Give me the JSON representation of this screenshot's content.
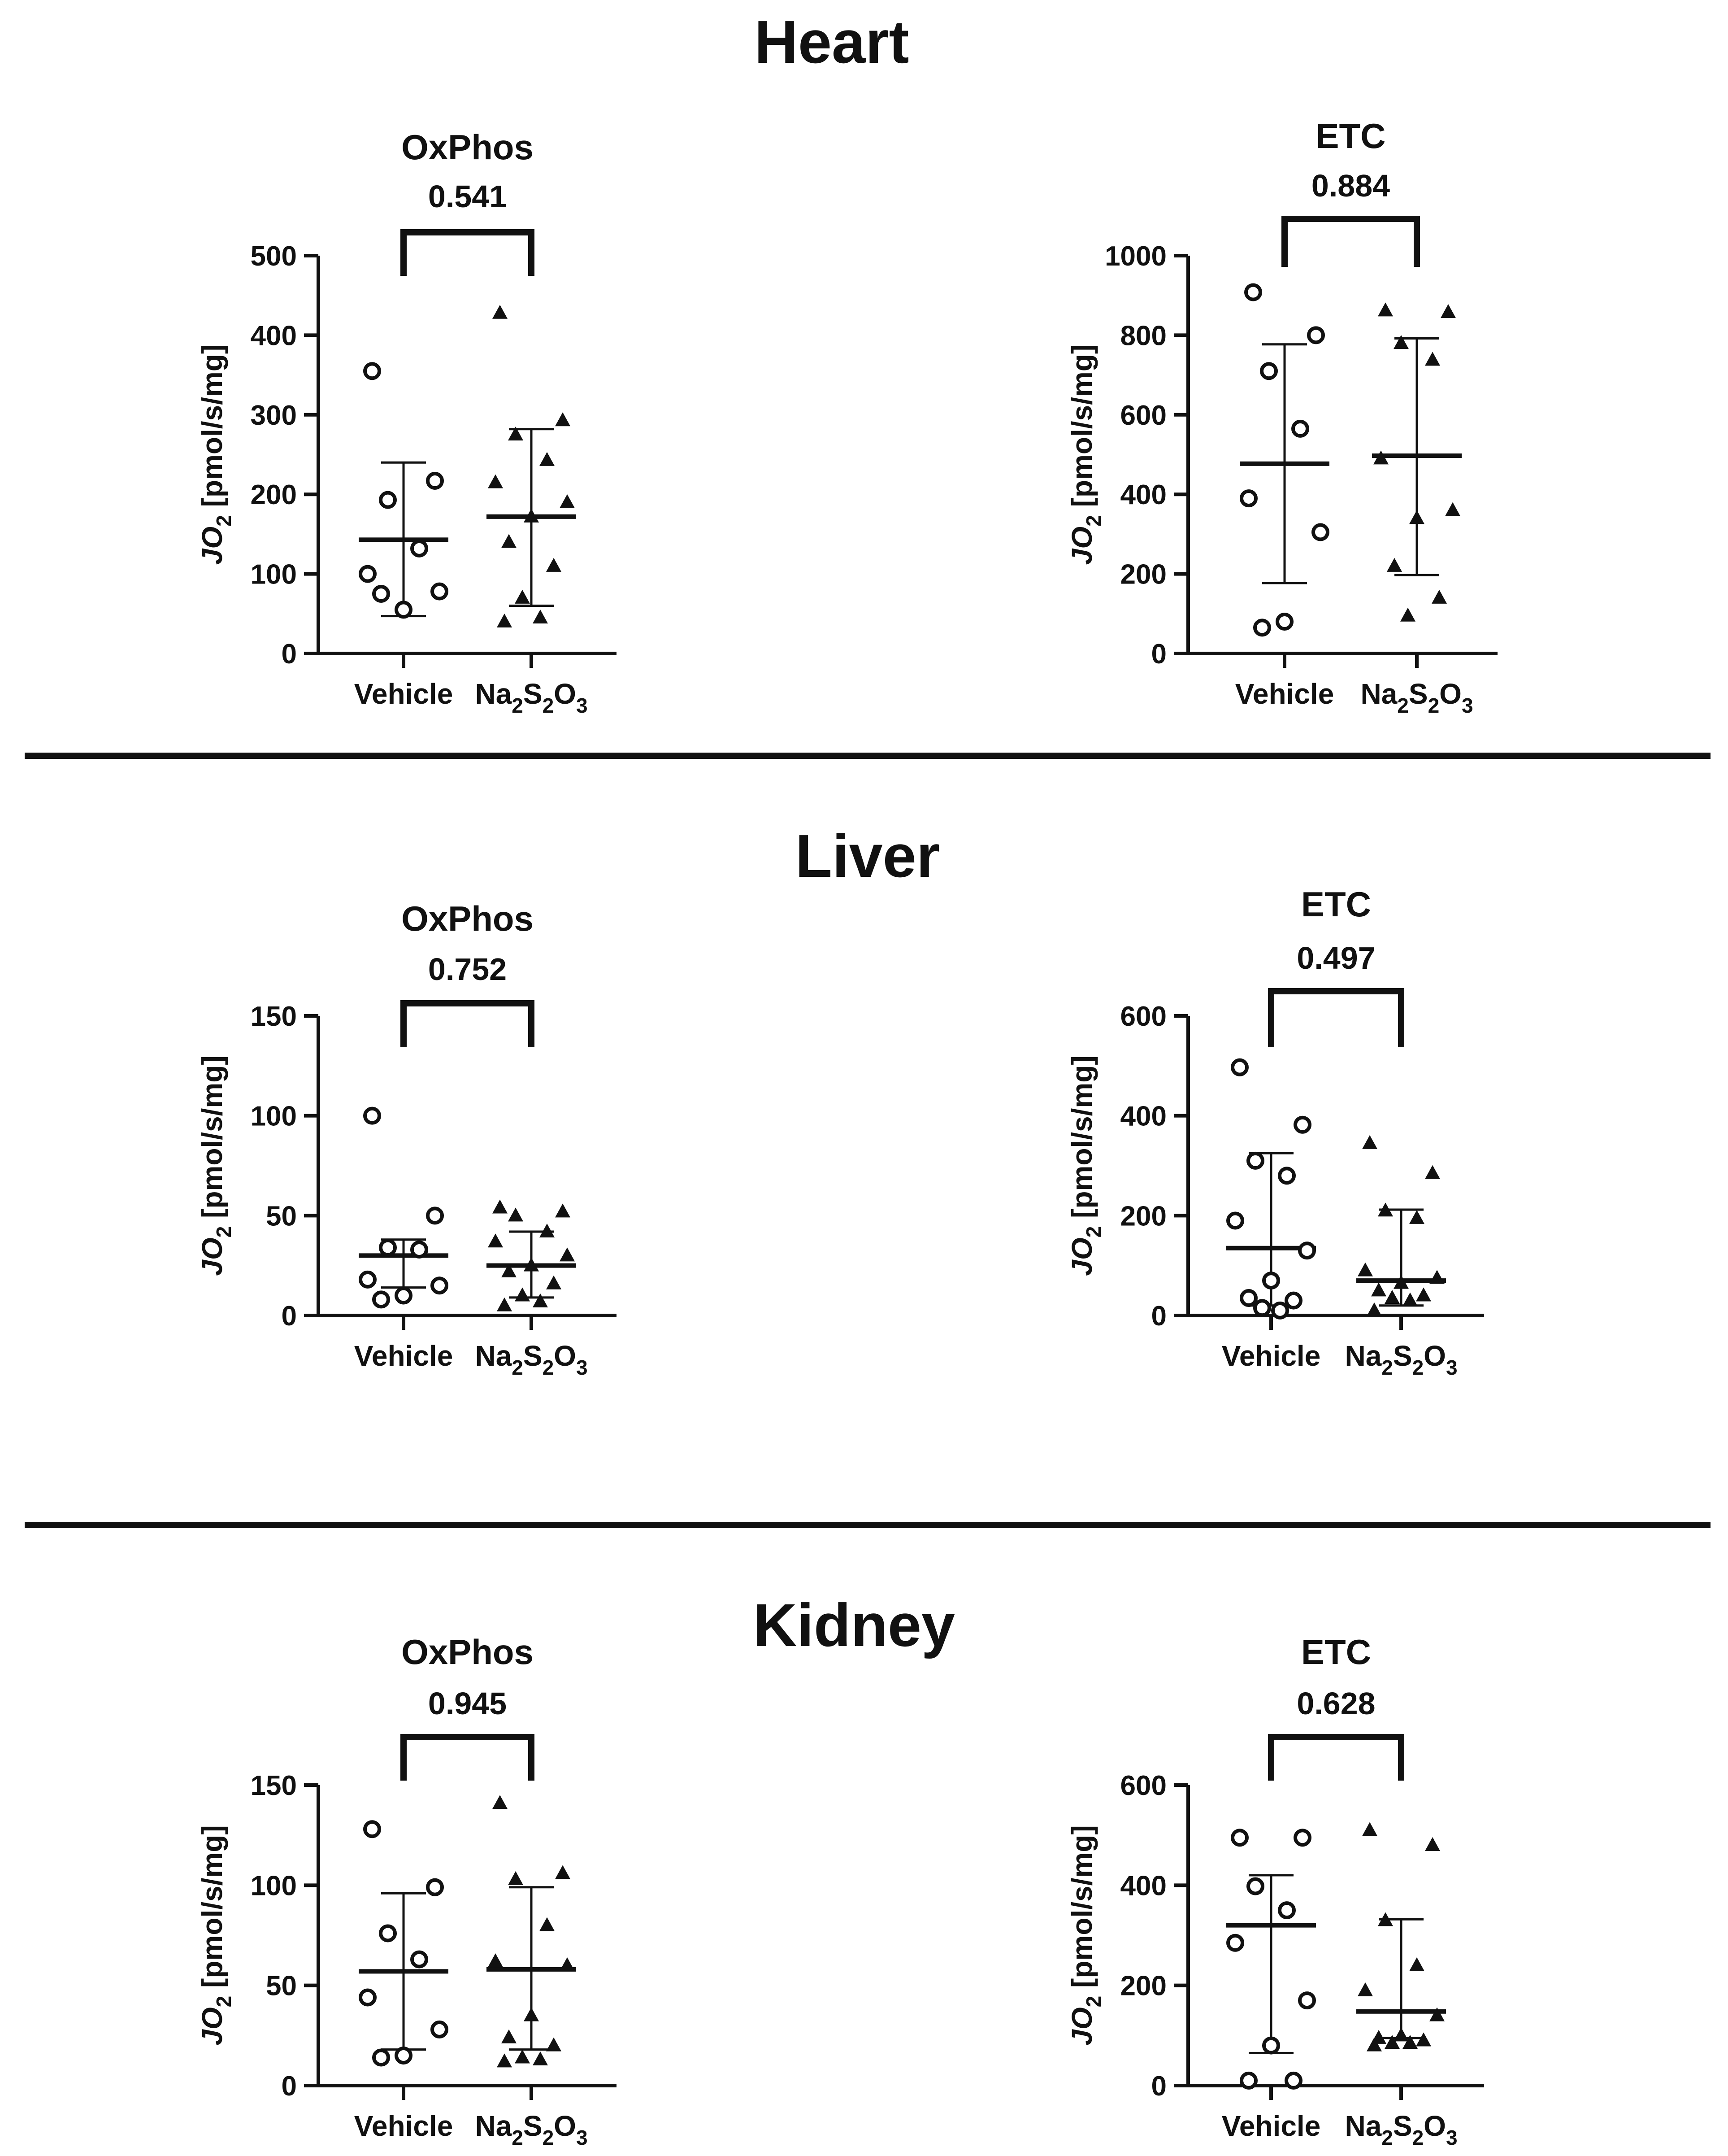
{
  "sections": [
    {
      "title": "Heart"
    },
    {
      "title": "Liver"
    },
    {
      "title": "Kidney"
    }
  ],
  "y_axis_label": {
    "italic_part": "JO",
    "subscript": "2",
    "rest": " [pmol/s/mg]"
  },
  "categories": [
    {
      "label": "Vehicle"
    },
    {
      "label_parts": [
        "Na",
        "2",
        "S",
        "2",
        "O",
        "3"
      ],
      "label": "Na2S2O3"
    }
  ],
  "chart_data": [
    {
      "section": "Heart",
      "type": "scatter",
      "title": "OxPhos",
      "p_value": "0.541",
      "ylabel": "JO2 [pmol/s/mg]",
      "ylim": [
        0,
        500
      ],
      "yticks": [
        0,
        100,
        200,
        300,
        400,
        500
      ],
      "categories": [
        "Vehicle",
        "Na2S2O3"
      ],
      "series": [
        {
          "name": "Vehicle",
          "marker": "open-circle",
          "mean": 143,
          "sd_low": 47,
          "sd_high": 240,
          "values": [
            355,
            217,
            193,
            132,
            100,
            78,
            55,
            75
          ]
        },
        {
          "name": "Na2S2O3",
          "marker": "filled-triangle",
          "mean": 172,
          "sd_low": 60,
          "sd_high": 282,
          "values": [
            428,
            293,
            275,
            243,
            215,
            190,
            172,
            140,
            110,
            70,
            45,
            40
          ]
        }
      ]
    },
    {
      "section": "Heart",
      "type": "scatter",
      "title": "ETC",
      "p_value": "0.884",
      "ylabel": "JO2 [pmol/s/mg]",
      "ylim": [
        0,
        1000
      ],
      "yticks": [
        0,
        200,
        400,
        600,
        800,
        1000
      ],
      "categories": [
        "Vehicle",
        "Na2S2O3"
      ],
      "series": [
        {
          "name": "Vehicle",
          "marker": "open-circle",
          "mean": 477,
          "sd_low": 177,
          "sd_high": 777,
          "values": [
            908,
            800,
            710,
            565,
            390,
            305,
            80,
            65
          ]
        },
        {
          "name": "Na2S2O3",
          "marker": "filled-triangle",
          "mean": 497,
          "sd_low": 197,
          "sd_high": 792,
          "values": [
            862,
            858,
            780,
            738,
            490,
            360,
            340,
            220,
            140,
            95
          ]
        }
      ]
    },
    {
      "section": "Liver",
      "type": "scatter",
      "title": "OxPhos",
      "p_value": "0.752",
      "ylabel": "JO2 [pmol/s/mg]",
      "ylim": [
        0,
        150
      ],
      "yticks": [
        0,
        50,
        100,
        150
      ],
      "categories": [
        "Vehicle",
        "Na2S2O3"
      ],
      "series": [
        {
          "name": "Vehicle",
          "marker": "open-circle",
          "mean": 30,
          "sd_low": 14,
          "sd_high": 38,
          "values": [
            100,
            50,
            34,
            33,
            18,
            15,
            10,
            8
          ]
        },
        {
          "name": "Na2S2O3",
          "marker": "filled-triangle",
          "mean": 25,
          "sd_low": 9,
          "sd_high": 42,
          "values": [
            54,
            52,
            50,
            42,
            37,
            30,
            25,
            22,
            16,
            10,
            7,
            5
          ]
        }
      ]
    },
    {
      "section": "Liver",
      "type": "scatter",
      "title": "ETC",
      "p_value": "0.497",
      "ylabel": "JO2 [pmol/s/mg]",
      "ylim": [
        0,
        600
      ],
      "yticks": [
        0,
        200,
        400,
        600
      ],
      "categories": [
        "Vehicle",
        "Na2S2O3"
      ],
      "series": [
        {
          "name": "Vehicle",
          "marker": "open-circle",
          "mean": 135,
          "sd_low": 20,
          "sd_high": 325,
          "values": [
            497,
            382,
            310,
            280,
            190,
            130,
            70,
            35,
            30,
            15,
            10
          ]
        },
        {
          "name": "Na2S2O3",
          "marker": "filled-triangle",
          "mean": 70,
          "sd_low": 20,
          "sd_high": 212,
          "values": [
            345,
            285,
            210,
            195,
            90,
            75,
            65,
            50,
            40,
            35,
            30,
            10
          ]
        }
      ]
    },
    {
      "section": "Kidney",
      "type": "scatter",
      "title": "OxPhos",
      "p_value": "0.945",
      "ylabel": "JO2 [pmol/s/mg]",
      "ylim": [
        0,
        150
      ],
      "yticks": [
        0,
        50,
        100,
        150
      ],
      "categories": [
        "Vehicle",
        "Na2S2O3"
      ],
      "series": [
        {
          "name": "Vehicle",
          "marker": "open-circle",
          "mean": 57,
          "sd_low": 18,
          "sd_high": 96,
          "values": [
            128,
            99,
            76,
            63,
            44,
            28,
            15,
            14
          ]
        },
        {
          "name": "Na2S2O3",
          "marker": "filled-triangle",
          "mean": 58,
          "sd_low": 18,
          "sd_high": 99,
          "values": [
            141,
            106,
            103,
            80,
            62,
            60,
            35,
            24,
            20,
            14,
            13,
            12
          ]
        }
      ]
    },
    {
      "section": "Kidney",
      "type": "scatter",
      "title": "ETC",
      "p_value": "0.628",
      "ylabel": "JO2 [pmol/s/mg]",
      "ylim": [
        0,
        600
      ],
      "yticks": [
        0,
        200,
        400,
        600
      ],
      "categories": [
        "Vehicle",
        "Na2S2O3"
      ],
      "series": [
        {
          "name": "Vehicle",
          "marker": "open-circle",
          "mean": 320,
          "sd_low": 65,
          "sd_high": 420,
          "values": [
            495,
            495,
            398,
            350,
            285,
            170,
            80,
            10,
            10
          ]
        },
        {
          "name": "Na2S2O3",
          "marker": "filled-triangle",
          "mean": 148,
          "sd_low": 95,
          "sd_high": 332,
          "values": [
            510,
            480,
            330,
            240,
            190,
            140,
            100,
            95,
            90,
            85,
            85,
            80
          ]
        }
      ]
    }
  ]
}
